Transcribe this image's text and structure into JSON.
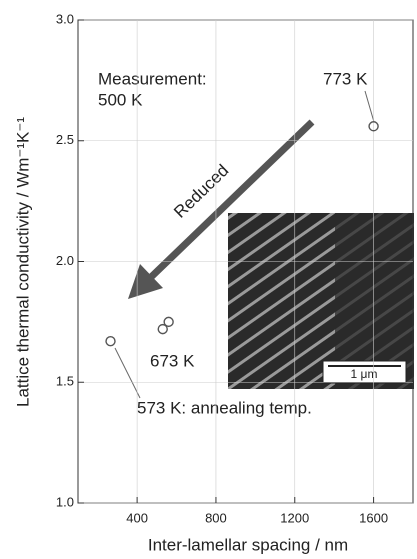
{
  "chart_data": {
    "type": "scatter",
    "x_label": "Inter-lamellar spacing / nm",
    "y_label": "Lattice thermal conductivity / Wm⁻¹K⁻¹",
    "annotations": {
      "measurement_1": "Measurement:",
      "measurement_2": "500 K",
      "p773": "773 K",
      "p673": "673 K",
      "p573": "573 K: annealing temp.",
      "arrow": "Reduced",
      "scale_bar": "1 μm"
    },
    "x": [
      1600,
      560,
      530,
      265
    ],
    "values": [
      2.56,
      1.75,
      1.72,
      1.67
    ],
    "color": "#555555",
    "xlim": [
      100,
      1800
    ],
    "ylim": [
      1.0,
      3.0
    ],
    "xticks": [
      400,
      800,
      1200,
      1600
    ],
    "yticks": [
      {
        "value": 1.0,
        "label": "1.0"
      },
      1.5,
      {
        "value": 2.0,
        "label": "2.0"
      },
      2.5,
      {
        "value": 3.0,
        "label": "3.0"
      }
    ]
  }
}
